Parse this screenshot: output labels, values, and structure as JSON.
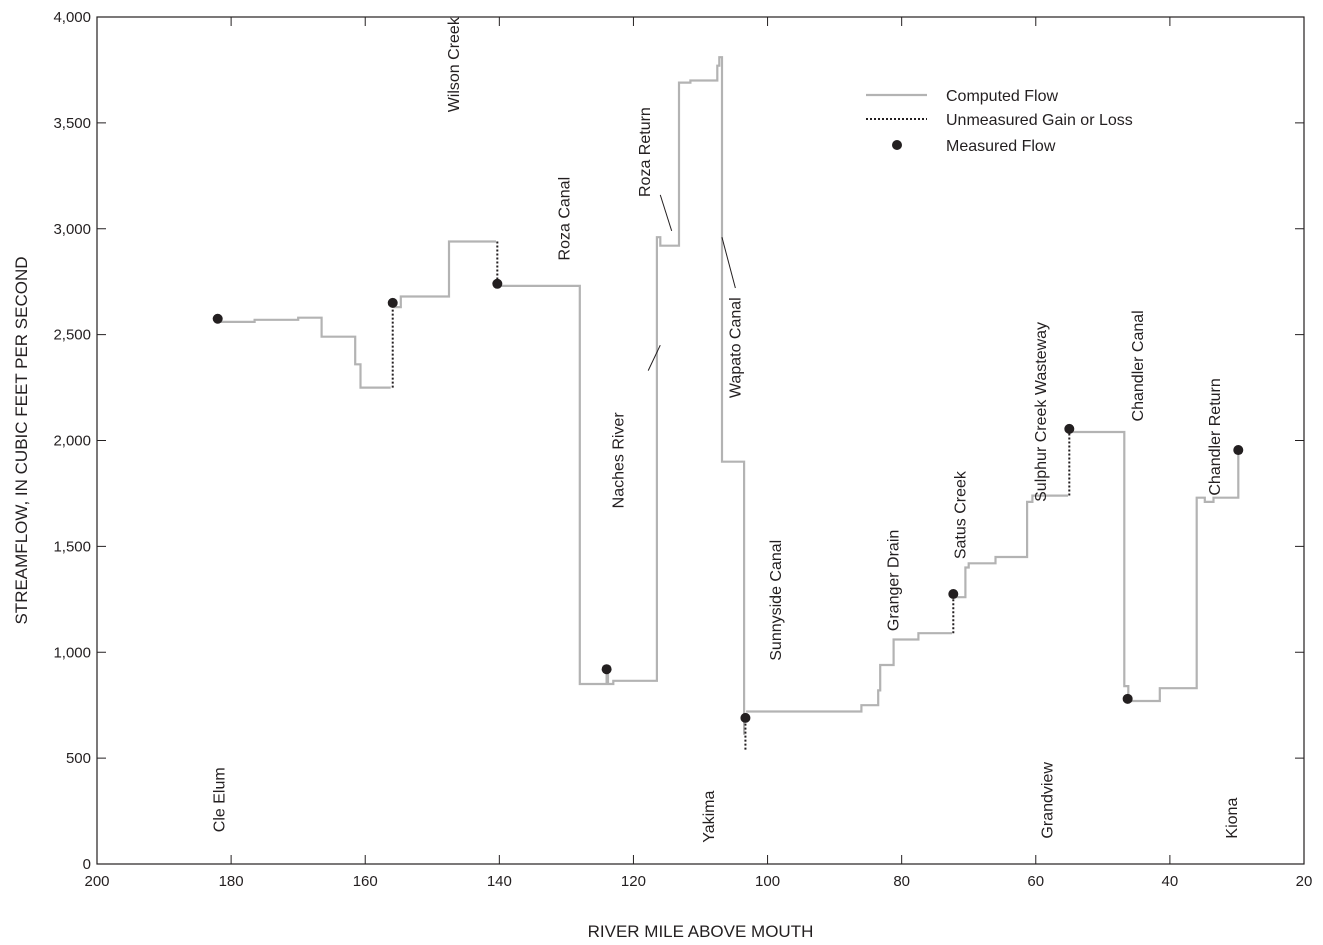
{
  "chart_data": {
    "type": "line",
    "xlabel": "RIVER MILE ABOVE MOUTH",
    "ylabel": "STREAMFLOW, IN CUBIC FEET PER SECOND",
    "xlim": [
      200,
      20
    ],
    "ylim": [
      0,
      4000
    ],
    "x_ticks": [
      200,
      180,
      160,
      140,
      120,
      100,
      80,
      60,
      40,
      20
    ],
    "y_ticks": [
      0,
      500,
      1000,
      1500,
      2000,
      2500,
      3000,
      3500,
      4000
    ],
    "x_tick_labels": [
      "200",
      "180",
      "160",
      "140",
      "120",
      "100",
      "80",
      "60",
      "40",
      "20"
    ],
    "y_tick_labels": [
      "0",
      "500",
      "1,000",
      "1,500",
      "2,000",
      "2,500",
      "3,000",
      "3,500",
      "4,000"
    ],
    "grid": false,
    "legend_position": "top-right",
    "colors": {
      "computed": "#b3b3b3",
      "gain_loss": "#231f20",
      "measured": "#231f20",
      "axis": "#231f20"
    },
    "legend": [
      "Computed Flow",
      "Unmeasured Gain or Loss",
      "Measured Flow"
    ],
    "computed_segments": [
      [
        [
          182,
          2560
        ],
        [
          176.5,
          2560
        ],
        [
          176.5,
          2570
        ],
        [
          170,
          2570
        ],
        [
          170,
          2580
        ],
        [
          166.5,
          2580
        ],
        [
          166.5,
          2490
        ],
        [
          161.5,
          2490
        ],
        [
          161.5,
          2360
        ],
        [
          160.7,
          2360
        ],
        [
          160.7,
          2250
        ],
        [
          156.2,
          2250
        ]
      ],
      [
        [
          155.8,
          2630
        ],
        [
          154.7,
          2630
        ],
        [
          154.7,
          2680
        ],
        [
          147.5,
          2680
        ],
        [
          147.5,
          2940
        ],
        [
          140.5,
          2940
        ]
      ],
      [
        [
          140,
          2730
        ],
        [
          128,
          2730
        ],
        [
          128,
          850
        ],
        [
          124,
          850
        ],
        [
          124,
          900
        ],
        [
          123.8,
          900
        ],
        [
          123.8,
          850
        ],
        [
          123,
          850
        ],
        [
          123,
          865
        ],
        [
          116.5,
          865
        ],
        [
          116.5,
          2960
        ],
        [
          116,
          2960
        ],
        [
          116,
          2920
        ],
        [
          113.2,
          2920
        ],
        [
          113.2,
          3690
        ],
        [
          111.5,
          3690
        ],
        [
          111.5,
          3700
        ],
        [
          107.5,
          3700
        ],
        [
          107.5,
          3770
        ],
        [
          107.2,
          3770
        ],
        [
          107.2,
          3810
        ],
        [
          106.8,
          3810
        ],
        [
          106.8,
          1900
        ],
        [
          103.5,
          1900
        ],
        [
          103.5,
          610
        ]
      ],
      [
        [
          103.2,
          720
        ],
        [
          86,
          720
        ],
        [
          86,
          750
        ],
        [
          83.5,
          750
        ],
        [
          83.5,
          820
        ],
        [
          83.2,
          820
        ],
        [
          83.2,
          940
        ],
        [
          81.2,
          940
        ],
        [
          81.2,
          1060
        ],
        [
          77.5,
          1060
        ],
        [
          77.5,
          1090
        ],
        [
          72.5,
          1090
        ]
      ],
      [
        [
          72,
          1260
        ],
        [
          70.5,
          1260
        ],
        [
          70.5,
          1400
        ],
        [
          70,
          1400
        ],
        [
          70,
          1420
        ],
        [
          66,
          1420
        ],
        [
          66,
          1450
        ],
        [
          61.3,
          1450
        ],
        [
          61.3,
          1710
        ],
        [
          60.5,
          1710
        ],
        [
          60.5,
          1740
        ],
        [
          55.2,
          1740
        ]
      ],
      [
        [
          54.8,
          2040
        ],
        [
          46.8,
          2040
        ],
        [
          46.8,
          840
        ],
        [
          46.2,
          840
        ],
        [
          46.2,
          770
        ],
        [
          41.5,
          770
        ],
        [
          41.5,
          830
        ],
        [
          36,
          830
        ],
        [
          36,
          1730
        ],
        [
          34.8,
          1730
        ],
        [
          34.8,
          1710
        ],
        [
          33.5,
          1710
        ],
        [
          33.5,
          1730
        ],
        [
          29.8,
          1730
        ],
        [
          29.8,
          1940
        ]
      ]
    ],
    "gain_loss_segments": [
      [
        [
          155.9,
          2250
        ],
        [
          155.9,
          2630
        ]
      ],
      [
        [
          140.3,
          2940
        ],
        [
          140.3,
          2730
        ]
      ],
      [
        [
          103.3,
          540
        ],
        [
          103.3,
          700
        ]
      ],
      [
        [
          72.3,
          1090
        ],
        [
          72.3,
          1270
        ]
      ],
      [
        [
          55,
          1740
        ],
        [
          55,
          2040
        ]
      ]
    ],
    "measured": [
      {
        "x": 182,
        "y": 2575
      },
      {
        "x": 155.9,
        "y": 2650
      },
      {
        "x": 140.3,
        "y": 2740
      },
      {
        "x": 124,
        "y": 920
      },
      {
        "x": 103.3,
        "y": 690
      },
      {
        "x": 72.3,
        "y": 1275
      },
      {
        "x": 55,
        "y": 2055
      },
      {
        "x": 46.3,
        "y": 780
      },
      {
        "x": 29.8,
        "y": 1955
      }
    ],
    "annotations": [
      {
        "text": "Wilson Creek",
        "x": 146,
        "y": 3550
      },
      {
        "text": "Roza Canal",
        "x": 129.5,
        "y": 2850
      },
      {
        "text": "Roza Return",
        "x": 117.5,
        "y": 3150
      },
      {
        "text": "Naches River",
        "x": 121.5,
        "y": 1680
      },
      {
        "text": "Wapato Canal",
        "x": 104,
        "y": 2200
      },
      {
        "text": "Sunnyside Canal",
        "x": 98,
        "y": 960
      },
      {
        "text": "Granger Drain",
        "x": 80.5,
        "y": 1100
      },
      {
        "text": "Satus Creek",
        "x": 70.5,
        "y": 1440
      },
      {
        "text": "Sulphur Creek Wasteway",
        "x": 58.5,
        "y": 1710
      },
      {
        "text": "Chandler Canal",
        "x": 44,
        "y": 2090
      },
      {
        "text": "Chandler Return",
        "x": 32.5,
        "y": 1740
      },
      {
        "text": "Cle Elum",
        "x": 181,
        "y": 150
      },
      {
        "text": "Yakima",
        "x": 108,
        "y": 100
      },
      {
        "text": "Grandview",
        "x": 57.5,
        "y": 120
      },
      {
        "text": "Kiona",
        "x": 30,
        "y": 120
      }
    ],
    "leader_lines": [
      {
        "from": [
          114.3,
          2990
        ],
        "to": [
          116,
          3160
        ]
      },
      {
        "from": [
          116,
          2450
        ],
        "to": [
          117.8,
          2330
        ]
      },
      {
        "from": [
          106.8,
          2960
        ],
        "to": [
          104.8,
          2720
        ]
      }
    ]
  }
}
